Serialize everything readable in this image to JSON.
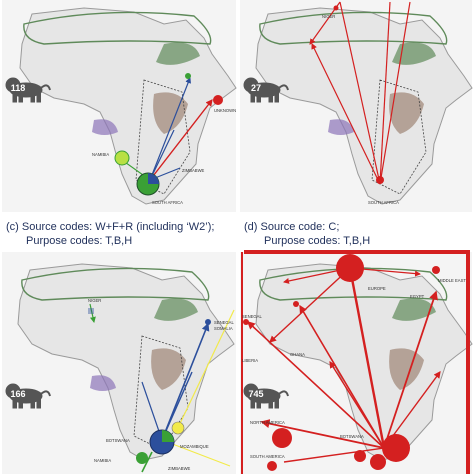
{
  "panels": [
    {
      "id": "top-left",
      "lion_count": "118",
      "labels": [
        "UNKNOWN",
        "NAMIBIA",
        "ZIMBABWE",
        "SOUTH AFRICA"
      ]
    },
    {
      "id": "top-right",
      "lion_count": "27",
      "labels": [
        "NIGER",
        "SOUTH AFRICA"
      ]
    },
    {
      "id": "bottom-left",
      "lion_count": "166",
      "labels": [
        "NIGER",
        "SENEGAL",
        "SOMALIA",
        "MOZAMBIQUE",
        "BOTSWANA",
        "NAMIBIA",
        "ZIMBABWE"
      ]
    },
    {
      "id": "bottom-right",
      "lion_count": "745",
      "labels": [
        "EUROPE",
        "MIDDLE EAST",
        "EGYPT",
        "SENEGAL",
        "GHANA",
        "LIBERIA",
        "NORTH AMERICA",
        "SOUTH AMERICA",
        "BOTSWANA"
      ]
    }
  ],
  "captions": {
    "c_line1": "(c)  Source codes: W+F+R (including ‘W2’);",
    "c_line2": "Purpose codes: T,B,H",
    "d_line1": "(d)  Source code: C;",
    "d_line2": "Purpose codes: T,B,H"
  },
  "colors": {
    "range_green": "#5f8a5a",
    "range_brown": "#8a6a55",
    "range_purple": "#8c74b8",
    "flow_red": "#d42020",
    "flow_blue": "#2c4f9c",
    "flow_green": "#3aa035",
    "flow_lime": "#b8e044",
    "flow_yellow": "#f2ea4a",
    "land": "#e6e6e6"
  },
  "icons": [
    "lion-icon"
  ]
}
